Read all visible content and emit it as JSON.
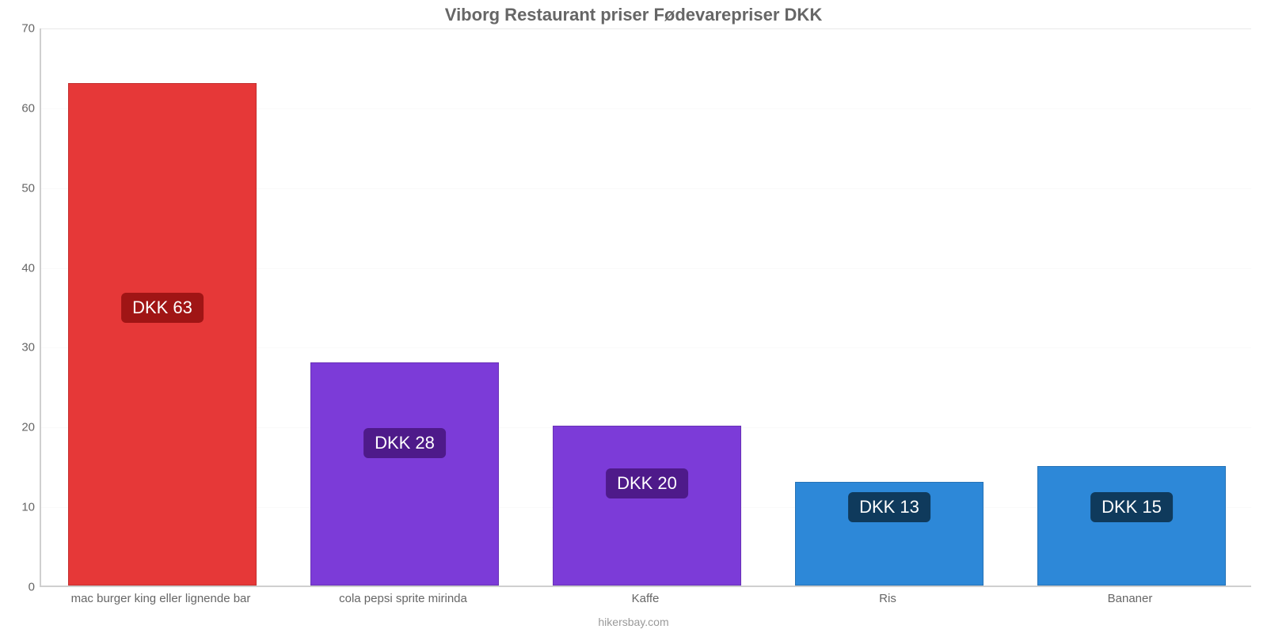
{
  "chart": {
    "type": "bar",
    "title": "Viborg Restaurant priser Fødevarepriser DKK",
    "title_fontsize": 22,
    "title_color": "#666666",
    "footer": "hikersbay.com",
    "footer_fontsize": 14,
    "footer_color": "#9a9a9a",
    "background_color": "#ffffff",
    "axis_line_color": "#cfcfcf",
    "gridline_major_color": "#fafafa",
    "gridline_axis_color": "#e8e8e8",
    "y": {
      "min": 0,
      "max": 70,
      "ticks": [
        0,
        10,
        20,
        30,
        40,
        50,
        60,
        70
      ],
      "tick_fontsize": 15,
      "tick_color": "#666666"
    },
    "x": {
      "tick_fontsize": 15,
      "tick_color": "#666666"
    },
    "bar_width_ratio": 0.78,
    "label_fontsize": 22,
    "label_text_color": "#ffffff",
    "bars": [
      {
        "category": "mac burger king eller lignende bar",
        "value": 63,
        "display": "DKK 63",
        "color": "#e63838",
        "badge_color": "#a01515"
      },
      {
        "category": "cola pepsi sprite mirinda",
        "value": 28,
        "display": "DKK 28",
        "color": "#7c3bd8",
        "badge_color": "#4e1a8a"
      },
      {
        "category": "Kaffe",
        "value": 20,
        "display": "DKK 20",
        "color": "#7c3bd8",
        "badge_color": "#4e1a8a"
      },
      {
        "category": "Ris",
        "value": 13,
        "display": "DKK 13",
        "color": "#2d88d8",
        "badge_color": "#0f3a5c"
      },
      {
        "category": "Bananer",
        "value": 15,
        "display": "DKK 15",
        "color": "#2d88d8",
        "badge_color": "#0f3a5c"
      }
    ],
    "label_center_value": 35
  }
}
